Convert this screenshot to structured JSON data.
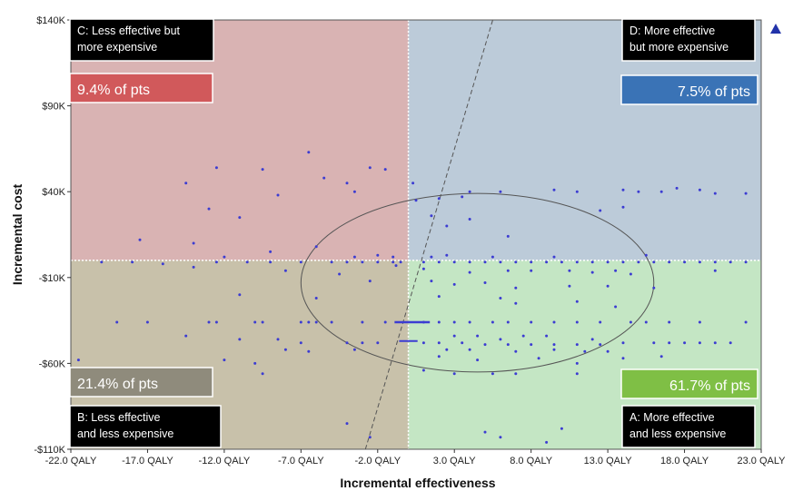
{
  "chart_data": {
    "type": "scatter",
    "title": "",
    "xlabel": "Incremental effectiveness",
    "ylabel": "Incremental cost",
    "xlim": [
      -22,
      23
    ],
    "ylim": [
      -110000,
      140000
    ],
    "x_ticks": [
      -22,
      -17,
      -12,
      -7,
      -2,
      3,
      8,
      13,
      18,
      23
    ],
    "x_tick_labels": [
      "-22.0 QALY",
      "-17.0 QALY",
      "-12.0 QALY",
      "-7.0 QALY",
      "-2.0 QALY",
      "3.0 QALY",
      "8.0 QALY",
      "13.0 QALY",
      "18.0 QALY",
      "23.0 QALY"
    ],
    "y_ticks": [
      140000,
      90000,
      40000,
      -10000,
      -60000,
      -110000
    ],
    "y_tick_labels": [
      "$140K",
      "$90K",
      "$40K",
      "-$10K",
      "-$60K",
      "-$110K"
    ],
    "origin": [
      0,
      0
    ],
    "quadrants": [
      {
        "id": "C",
        "label_line1": "C: Less effective but",
        "label_line2": "more expensive",
        "pct": "9.4% of pts",
        "fill": "#d9b3b3",
        "pct_color": "#d1595b"
      },
      {
        "id": "D",
        "label_line1": "D: More effective",
        "label_line2": "but more expensive",
        "pct": "7.5% of pts",
        "fill": "#bccbd9",
        "pct_color": "#3a73b6"
      },
      {
        "id": "B",
        "label_line1": "B: Less effective",
        "label_line2": "and less expensive",
        "pct": "21.4% of pts",
        "fill": "#c8c1aa",
        "pct_color": "#8f8b7c"
      },
      {
        "id": "A",
        "label_line1": "A: More effective",
        "label_line2": "and less expensive",
        "pct": "61.7% of pts",
        "fill": "#c4e6c4",
        "pct_color": "#7fbf45"
      }
    ],
    "ellipse": {
      "cx": 4.5,
      "cy": -13000,
      "rx": 11.5,
      "ry": 52000
    },
    "threshold_line": {
      "x1": -2.8,
      "y1": -110000,
      "x2": 5.5,
      "y2": 140000
    },
    "marker_color": "#3c3cd2",
    "points": [
      [
        -6.5,
        63000
      ],
      [
        -12.5,
        54000
      ],
      [
        -9.5,
        53000
      ],
      [
        -14.5,
        45000
      ],
      [
        -2.5,
        54000
      ],
      [
        -1.5,
        53000
      ],
      [
        -5.5,
        48000
      ],
      [
        -4.0,
        45000
      ],
      [
        -8.5,
        38000
      ],
      [
        -3.5,
        40000
      ],
      [
        -13.0,
        30000
      ],
      [
        -11.0,
        25000
      ],
      [
        -17.5,
        12000
      ],
      [
        -14.0,
        10000
      ],
      [
        -12.0,
        2000
      ],
      [
        -9.0,
        5000
      ],
      [
        -6.0,
        8000
      ],
      [
        -4.0,
        -1000
      ],
      [
        -3.0,
        -1000
      ],
      [
        -2.0,
        -1000
      ],
      [
        -1.0,
        -1000
      ],
      [
        -0.5,
        -1000
      ],
      [
        -5.0,
        -1000
      ],
      [
        -7.0,
        -1000
      ],
      [
        -9.0,
        -1000
      ],
      [
        -10.5,
        -1000
      ],
      [
        -12.5,
        -1000
      ],
      [
        -14.0,
        -4000
      ],
      [
        -16.0,
        -2000
      ],
      [
        -18.0,
        -1000
      ],
      [
        -20.0,
        -1000
      ],
      [
        -1.0,
        2000
      ],
      [
        -2.0,
        3000
      ],
      [
        -3.5,
        2000
      ],
      [
        -0.8,
        -3000
      ],
      [
        -8.0,
        -6000
      ],
      [
        -4.5,
        -8000
      ],
      [
        -2.5,
        -12000
      ],
      [
        -11.0,
        -20000
      ],
      [
        -6.0,
        -22000
      ],
      [
        -19.0,
        -36000
      ],
      [
        -17.0,
        -36000
      ],
      [
        -13.0,
        -36000
      ],
      [
        -12.5,
        -36000
      ],
      [
        -10.0,
        -36000
      ],
      [
        -9.5,
        -36000
      ],
      [
        -7.0,
        -36000
      ],
      [
        -6.5,
        -36000
      ],
      [
        -6.0,
        -36000
      ],
      [
        -5.0,
        -36000
      ],
      [
        -3.0,
        -36000
      ],
      [
        -1.5,
        -36000
      ],
      [
        -14.5,
        -44000
      ],
      [
        -11.0,
        -46000
      ],
      [
        -8.5,
        -46000
      ],
      [
        -7.0,
        -48000
      ],
      [
        -4.0,
        -48000
      ],
      [
        -3.0,
        -48000
      ],
      [
        -2.0,
        -48000
      ],
      [
        -8.0,
        -52000
      ],
      [
        -6.5,
        -53000
      ],
      [
        -3.5,
        -52000
      ],
      [
        -12.0,
        -58000
      ],
      [
        -10.0,
        -60000
      ],
      [
        -21.5,
        -58000
      ],
      [
        -13.0,
        -64000
      ],
      [
        -9.5,
        -66000
      ],
      [
        -4.0,
        -95000
      ],
      [
        -2.5,
        -103000
      ],
      [
        2.0,
        36000
      ],
      [
        3.5,
        37000
      ],
      [
        4.0,
        40000
      ],
      [
        6.0,
        40000
      ],
      [
        9.5,
        41000
      ],
      [
        11.0,
        40000
      ],
      [
        14.0,
        41000
      ],
      [
        15.0,
        40000
      ],
      [
        16.5,
        40000
      ],
      [
        17.5,
        42000
      ],
      [
        19.0,
        41000
      ],
      [
        20.0,
        39000
      ],
      [
        22.0,
        39000
      ],
      [
        0.3,
        45000
      ],
      [
        0.5,
        35000
      ],
      [
        1.5,
        26000
      ],
      [
        2.5,
        20000
      ],
      [
        4.0,
        24000
      ],
      [
        6.5,
        14000
      ],
      [
        12.5,
        29000
      ],
      [
        14.0,
        31000
      ],
      [
        1.0,
        -1000
      ],
      [
        2.0,
        -1000
      ],
      [
        3.0,
        -1000
      ],
      [
        4.0,
        -1000
      ],
      [
        5.0,
        -1000
      ],
      [
        6.0,
        -1000
      ],
      [
        7.0,
        -1000
      ],
      [
        8.0,
        -1000
      ],
      [
        9.0,
        -1000
      ],
      [
        10.0,
        -1000
      ],
      [
        11.0,
        -1000
      ],
      [
        12.0,
        -1000
      ],
      [
        13.0,
        -1000
      ],
      [
        14.0,
        -1000
      ],
      [
        15.0,
        -1000
      ],
      [
        16.0,
        -1000
      ],
      [
        17.0,
        -1000
      ],
      [
        18.0,
        -1000
      ],
      [
        19.0,
        -1000
      ],
      [
        20.0,
        -1000
      ],
      [
        21.0,
        -1000
      ],
      [
        22.0,
        -1000
      ],
      [
        1.5,
        2000
      ],
      [
        2.5,
        3000
      ],
      [
        5.5,
        2000
      ],
      [
        9.5,
        2000
      ],
      [
        15.5,
        3000
      ],
      [
        1.0,
        -5000
      ],
      [
        4.0,
        -7000
      ],
      [
        6.5,
        -6000
      ],
      [
        8.0,
        -6000
      ],
      [
        10.5,
        -6000
      ],
      [
        12.0,
        -7000
      ],
      [
        13.5,
        -6000
      ],
      [
        14.5,
        -8000
      ],
      [
        20.0,
        -6000
      ],
      [
        1.5,
        -12000
      ],
      [
        3.0,
        -14000
      ],
      [
        5.0,
        -13000
      ],
      [
        7.0,
        -16000
      ],
      [
        10.5,
        -15000
      ],
      [
        13.0,
        -15000
      ],
      [
        16.0,
        -16000
      ],
      [
        2.0,
        -21000
      ],
      [
        6.0,
        -22000
      ],
      [
        7.0,
        -25000
      ],
      [
        11.0,
        -24000
      ],
      [
        13.5,
        -27000
      ],
      [
        1.0,
        -36000
      ],
      [
        2.0,
        -36000
      ],
      [
        3.0,
        -36000
      ],
      [
        4.0,
        -36000
      ],
      [
        5.5,
        -36000
      ],
      [
        6.5,
        -36000
      ],
      [
        8.0,
        -36000
      ],
      [
        9.5,
        -36000
      ],
      [
        11.0,
        -36000
      ],
      [
        12.5,
        -36000
      ],
      [
        14.5,
        -36000
      ],
      [
        15.5,
        -36000
      ],
      [
        17.0,
        -36000
      ],
      [
        19.0,
        -36000
      ],
      [
        22.0,
        -36000
      ],
      [
        3.0,
        -44000
      ],
      [
        4.5,
        -44000
      ],
      [
        6.0,
        -46000
      ],
      [
        7.5,
        -44000
      ],
      [
        9.0,
        -44000
      ],
      [
        12.0,
        -46000
      ],
      [
        1.0,
        -48000
      ],
      [
        2.0,
        -48000
      ],
      [
        3.5,
        -48000
      ],
      [
        5.0,
        -49000
      ],
      [
        6.5,
        -49000
      ],
      [
        8.0,
        -49000
      ],
      [
        9.5,
        -49000
      ],
      [
        11.0,
        -49000
      ],
      [
        12.5,
        -49000
      ],
      [
        14.0,
        -48000
      ],
      [
        16.0,
        -48000
      ],
      [
        17.0,
        -48000
      ],
      [
        18.0,
        -48000
      ],
      [
        19.0,
        -48000
      ],
      [
        20.0,
        -48000
      ],
      [
        21.0,
        -48000
      ],
      [
        2.5,
        -52000
      ],
      [
        4.0,
        -52000
      ],
      [
        7.0,
        -53000
      ],
      [
        9.5,
        -52000
      ],
      [
        11.5,
        -53000
      ],
      [
        13.0,
        -53000
      ],
      [
        2.0,
        -56000
      ],
      [
        4.5,
        -58000
      ],
      [
        8.5,
        -57000
      ],
      [
        11.0,
        -60000
      ],
      [
        14.0,
        -57000
      ],
      [
        16.5,
        -56000
      ],
      [
        1.0,
        -64000
      ],
      [
        3.0,
        -66000
      ],
      [
        5.5,
        -66000
      ],
      [
        7.0,
        -66000
      ],
      [
        11.0,
        -66000
      ],
      [
        5.0,
        -100000
      ],
      [
        6.0,
        -103000
      ],
      [
        9.0,
        -106000
      ],
      [
        10.0,
        -98000
      ],
      [
        14.5,
        -98000
      ]
    ]
  }
}
